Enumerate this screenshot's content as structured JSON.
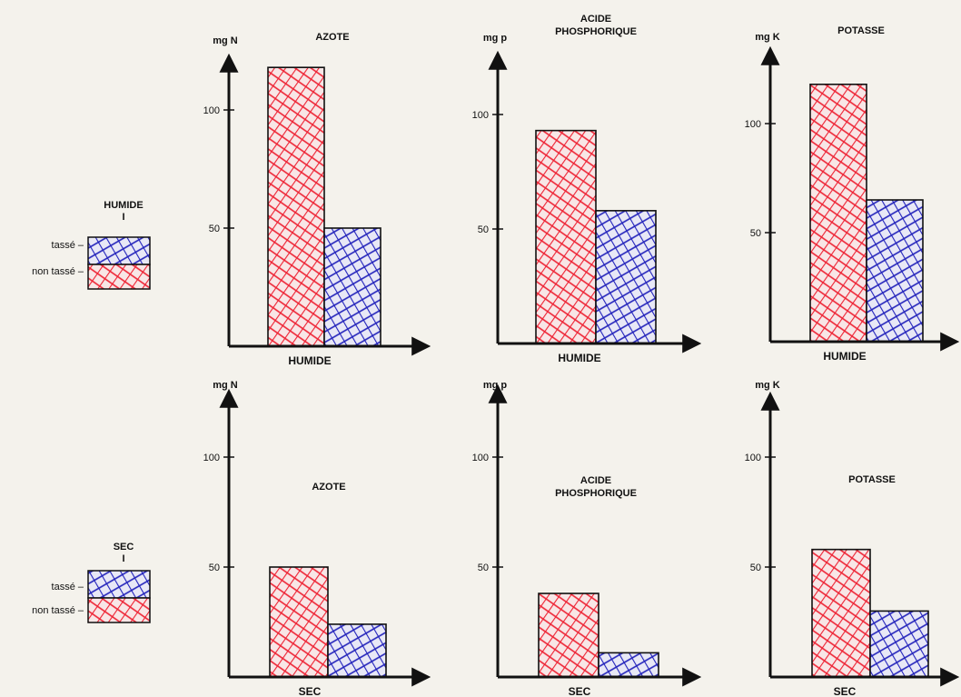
{
  "legend_humide": {
    "title": "HUMIDE",
    "tasse": "tassé –",
    "non_tasse": "non tassé –"
  },
  "legend_sec": {
    "title": "SEC",
    "tasse": "tassé –",
    "non_tasse": "non tassé –"
  },
  "colors": {
    "non_tasse": "#ee2233",
    "tasse": "#2222bb",
    "axis": "#111111"
  },
  "chart_data": [
    {
      "type": "bar",
      "title": "AZOTE",
      "ylabel": "mg N",
      "xlabel": "HUMIDE",
      "ylim": [
        0,
        130
      ],
      "yticks": [
        50,
        100
      ],
      "categories": [
        "non tassé",
        "tassé"
      ],
      "values": [
        118,
        50
      ]
    },
    {
      "type": "bar",
      "title": "ACIDE PHOSPHORIQUE",
      "ylabel": "mg p",
      "xlabel": "HUMIDE",
      "ylim": [
        0,
        130
      ],
      "yticks": [
        50,
        100
      ],
      "categories": [
        "non tassé",
        "tassé"
      ],
      "values": [
        93,
        58
      ]
    },
    {
      "type": "bar",
      "title": "POTASSE",
      "ylabel": "mg K",
      "xlabel": "HUMIDE",
      "ylim": [
        0,
        130
      ],
      "yticks": [
        50,
        100
      ],
      "categories": [
        "non tassé",
        "tassé"
      ],
      "values": [
        118,
        65
      ]
    },
    {
      "type": "bar",
      "title": "AZOTE",
      "ylabel": "mg N",
      "xlabel": "SEC",
      "ylim": [
        0,
        130
      ],
      "yticks": [
        50,
        100
      ],
      "categories": [
        "non tassé",
        "tassé"
      ],
      "values": [
        50,
        24
      ]
    },
    {
      "type": "bar",
      "title": "ACIDE PHOSPHORIQUE",
      "ylabel": "mg p",
      "xlabel": "SEC",
      "ylim": [
        0,
        130
      ],
      "yticks": [
        50,
        100
      ],
      "categories": [
        "non tassé",
        "tassé"
      ],
      "values": [
        38,
        11
      ]
    },
    {
      "type": "bar",
      "title": "POTASSE",
      "ylabel": "mg K",
      "xlabel": "SEC",
      "ylim": [
        0,
        130
      ],
      "yticks": [
        50,
        100
      ],
      "categories": [
        "non tassé",
        "tassé"
      ],
      "values": [
        58,
        30
      ]
    }
  ]
}
